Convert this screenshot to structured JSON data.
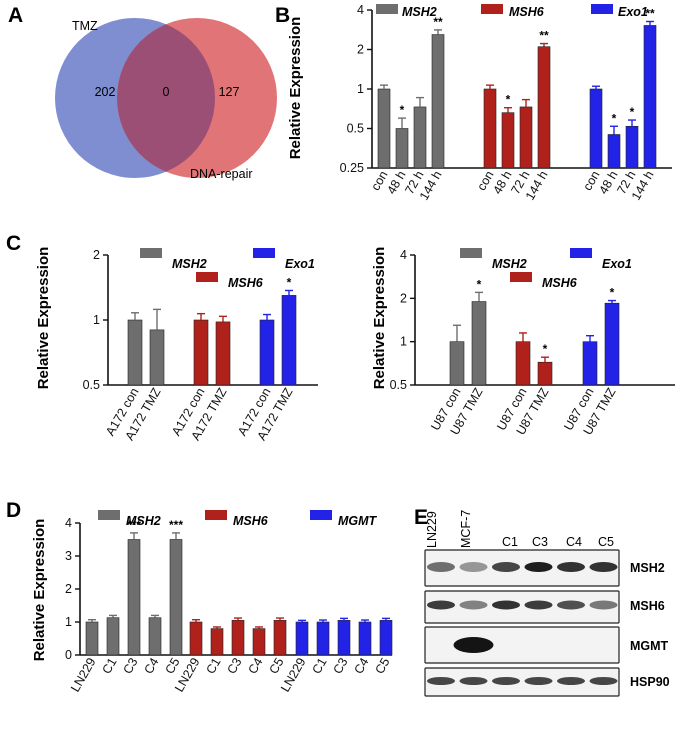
{
  "colors": {
    "MSH2": "#6e6e6e",
    "MSH6": "#b1211c",
    "Exo1": "#2323e8",
    "MGMT": "#2323e8",
    "venn_left": "#7f8ed0",
    "venn_right": "#e07477",
    "venn_overlap": "#9b4f75"
  },
  "panels": {
    "A": {
      "letter": "A",
      "venn": {
        "left_label": "TMZ",
        "right_label": "DNA-repair",
        "left_only": "202",
        "overlap": "0",
        "right_only": "127"
      }
    },
    "B": {
      "letter": "B"
    },
    "C": {
      "letter": "C"
    },
    "D": {
      "letter": "D"
    },
    "E": {
      "letter": "E",
      "columns": [
        "LN229",
        "MCF-7",
        "C1",
        "C3",
        "C4",
        "C5"
      ],
      "rows": [
        "MSH2",
        "MSH6",
        "MGMT",
        "HSP90"
      ]
    }
  },
  "chart_data": [
    {
      "id": "B",
      "type": "bar",
      "scale": "log2",
      "ylabel": "Relative Expression",
      "ylim": [
        0.25,
        4
      ],
      "yticks": [
        "0.25",
        "0.5",
        "1",
        "2",
        "4"
      ],
      "categories": [
        "con",
        "48 h",
        "72 h",
        "144 h"
      ],
      "series": [
        {
          "name": "MSH2",
          "values": [
            1.0,
            0.5,
            0.73,
            2.6
          ],
          "errors": [
            0.07,
            0.1,
            0.13,
            0.22
          ],
          "stars": [
            "",
            "*",
            "",
            "**"
          ]
        },
        {
          "name": "MSH6",
          "values": [
            1.0,
            0.66,
            0.73,
            2.1
          ],
          "errors": [
            0.07,
            0.06,
            0.1,
            0.12
          ],
          "stars": [
            "",
            "*",
            "",
            "**"
          ]
        },
        {
          "name": "Exo1",
          "values": [
            1.0,
            0.45,
            0.52,
            3.05
          ],
          "errors": [
            0.05,
            0.07,
            0.06,
            0.22
          ],
          "stars": [
            "",
            "*",
            "*",
            "**"
          ]
        }
      ]
    },
    {
      "id": "C-left",
      "type": "bar",
      "scale": "log2",
      "ylabel": "Relative Expression",
      "ylim": [
        0.5,
        2
      ],
      "yticks": [
        "0.5",
        "1",
        "2"
      ],
      "categories": [
        "A172 con",
        "A172 TMZ"
      ],
      "series": [
        {
          "name": "MSH2",
          "values": [
            1.0,
            0.9
          ],
          "errors": [
            0.08,
            0.22
          ],
          "stars": [
            "",
            ""
          ]
        },
        {
          "name": "MSH6",
          "values": [
            1.0,
            0.98
          ],
          "errors": [
            0.07,
            0.06
          ],
          "stars": [
            "",
            ""
          ]
        },
        {
          "name": "Exo1",
          "values": [
            1.0,
            1.3
          ],
          "errors": [
            0.06,
            0.07
          ],
          "stars": [
            "",
            "*"
          ]
        }
      ]
    },
    {
      "id": "C-right",
      "type": "bar",
      "scale": "log2",
      "ylabel": "Relative Expression",
      "ylim": [
        0.5,
        4
      ],
      "yticks": [
        "0.5",
        "1",
        "2",
        "4"
      ],
      "categories": [
        "U87 con",
        "U87 TMZ"
      ],
      "series": [
        {
          "name": "MSH2",
          "values": [
            1.0,
            1.9
          ],
          "errors": [
            0.3,
            0.3
          ],
          "stars": [
            "",
            "*"
          ]
        },
        {
          "name": "MSH6",
          "values": [
            1.0,
            0.72
          ],
          "errors": [
            0.15,
            0.06
          ],
          "stars": [
            "",
            "*"
          ]
        },
        {
          "name": "Exo1",
          "values": [
            1.0,
            1.85
          ],
          "errors": [
            0.1,
            0.08
          ],
          "stars": [
            "",
            "*"
          ]
        }
      ]
    },
    {
      "id": "D",
      "type": "bar",
      "scale": "linear",
      "ylabel": "Relative Expression",
      "ylim": [
        0,
        4
      ],
      "yticks": [
        "0",
        "1",
        "2",
        "3",
        "4"
      ],
      "categories": [
        "LN229",
        "C1",
        "C3",
        "C4",
        "C5"
      ],
      "series": [
        {
          "name": "MSH2",
          "values": [
            1.0,
            1.13,
            3.5,
            1.13,
            3.5
          ],
          "errors": [
            0.07,
            0.07,
            0.2,
            0.07,
            0.2
          ],
          "stars": [
            "",
            "",
            "***",
            "",
            "***"
          ]
        },
        {
          "name": "MSH6",
          "values": [
            1.0,
            0.8,
            1.05,
            0.8,
            1.05
          ],
          "errors": [
            0.07,
            0.05,
            0.07,
            0.05,
            0.07
          ],
          "stars": [
            "",
            "",
            "",
            "",
            ""
          ]
        },
        {
          "name": "MGMT",
          "values": [
            1.0,
            1.0,
            1.05,
            1.0,
            1.05
          ],
          "errors": [
            0.05,
            0.06,
            0.06,
            0.06,
            0.06
          ],
          "stars": [
            "",
            "",
            "",
            "",
            ""
          ]
        }
      ]
    }
  ]
}
